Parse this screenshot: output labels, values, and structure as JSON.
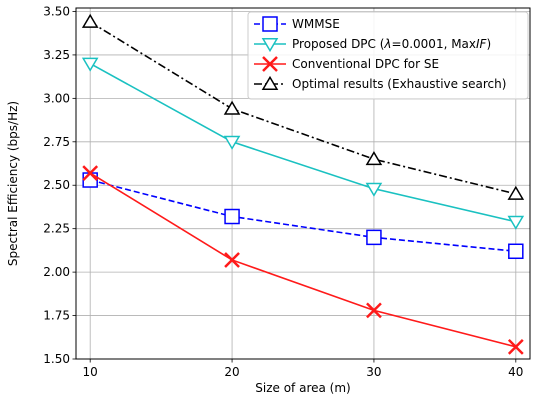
{
  "chart_data": {
    "type": "line",
    "xlabel": "Size of area (m)",
    "ylabel": "Spectral Efficiency (bps/Hz)",
    "x": [
      10,
      20,
      30,
      40
    ],
    "xticks": [
      "10",
      "20",
      "30",
      "40"
    ],
    "yticks": [
      "1.50",
      "1.75",
      "2.00",
      "2.25",
      "2.50",
      "2.75",
      "3.00",
      "3.25",
      "3.50"
    ],
    "xlim": [
      9,
      41
    ],
    "ylim": [
      1.5,
      3.52
    ],
    "grid": true,
    "legend_position": "top-right",
    "series": [
      {
        "name": "WMMSE",
        "values": [
          2.53,
          2.32,
          2.2,
          2.12
        ],
        "color": "#0000ff",
        "marker": "square",
        "linestyle": "dashed"
      },
      {
        "name_parts": [
          "Proposed DPC (",
          "λ",
          "=0.0001, Max",
          "IF",
          ")"
        ],
        "values": [
          3.2,
          2.75,
          2.48,
          2.29
        ],
        "color": "#1ac1c1",
        "marker": "triangle-down",
        "linestyle": "solid"
      },
      {
        "name": "Conventional DPC for SE",
        "values": [
          2.57,
          2.07,
          1.78,
          1.57
        ],
        "color": "#ff1a1a",
        "marker": "x",
        "linestyle": "solid"
      },
      {
        "name": "Optimal results (Exhaustive search)",
        "values": [
          3.44,
          2.94,
          2.65,
          2.45
        ],
        "color": "#000000",
        "marker": "triangle-up",
        "linestyle": "dashdot"
      }
    ]
  }
}
